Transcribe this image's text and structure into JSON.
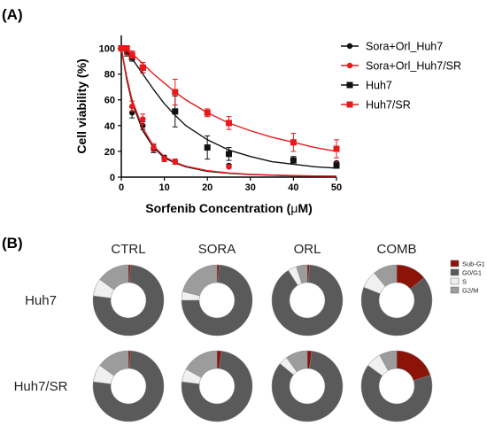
{
  "panel_labels": [
    "(A)",
    "(B)"
  ],
  "colors": {
    "black": "#111111",
    "red": "#e8191c",
    "sub_g1": "#8b1308",
    "g0_g1": "#5a5a5a",
    "s": "#f0f0f0",
    "g2_m": "#9c9c9c"
  },
  "chart_data": [
    {
      "type": "line",
      "xlabel_prefix": "Sorfenib Concentration (",
      "xlabel_mu": "μ",
      "xlabel_suffix": "M)",
      "ylabel": "Cell viability (%)",
      "xlim": [
        0,
        50
      ],
      "ylim": [
        0,
        110
      ],
      "xticks": [
        0,
        10,
        20,
        30,
        40,
        50
      ],
      "yticks": [
        0,
        20,
        40,
        60,
        80,
        100
      ],
      "legend_position": "right",
      "series": [
        {
          "name": "Sora+Orl_Huh7",
          "color": "#111111",
          "marker": "circle",
          "x": [
            0,
            1.25,
            2.5,
            5,
            7.5,
            10,
            12.5,
            25,
            50
          ],
          "y": [
            100,
            97,
            50,
            40,
            22,
            15,
            12,
            9,
            11
          ],
          "err": [
            2,
            3,
            4,
            3,
            3,
            2,
            2,
            1,
            1
          ],
          "fit": [
            0,
            1.25,
            2.5,
            5,
            7.5,
            10,
            12.5,
            15,
            20,
            25,
            30,
            35,
            40,
            45,
            50
          ],
          "fit_y": [
            100,
            76,
            58,
            36,
            23,
            15,
            11,
            8,
            4.5,
            3,
            2,
            1.5,
            1,
            0.8,
            0.6
          ]
        },
        {
          "name": "Sora+Orl_Huh7/SR",
          "color": "#e8191c",
          "marker": "circle",
          "x": [
            0,
            1.25,
            2.5,
            5,
            7.5,
            10,
            12.5,
            25,
            50
          ],
          "y": [
            100,
            98,
            55,
            45,
            23,
            14,
            12,
            8,
            10
          ],
          "err": [
            2,
            3,
            4,
            4,
            3,
            2,
            2,
            1,
            1
          ],
          "fit": [
            0,
            1.25,
            2.5,
            5,
            7.5,
            10,
            12.5,
            15,
            20,
            25,
            30,
            35,
            40,
            45,
            50
          ],
          "fit_y": [
            100,
            78,
            60,
            38,
            24,
            16,
            11.5,
            8.5,
            5,
            3.2,
            2.2,
            1.6,
            1.2,
            0.9,
            0.7
          ]
        },
        {
          "name": "Huh7",
          "color": "#111111",
          "marker": "square",
          "x": [
            0,
            1.25,
            2.5,
            5,
            12.5,
            20,
            25,
            40,
            50
          ],
          "y": [
            100,
            100,
            93,
            85,
            51,
            23,
            18,
            13,
            9
          ],
          "err": [
            2,
            2,
            3,
            4,
            12,
            9,
            5,
            3,
            2
          ],
          "fit": [
            0,
            2.5,
            5,
            7.5,
            10,
            12.5,
            15,
            20,
            25,
            30,
            35,
            40,
            45,
            50
          ],
          "fit_y": [
            102,
            92,
            80,
            68,
            57,
            48,
            40,
            29,
            21,
            16,
            12,
            10,
            8,
            7
          ]
        },
        {
          "name": "Huh7/SR",
          "color": "#e8191c",
          "marker": "square",
          "x": [
            0,
            1.25,
            2.5,
            5,
            12.5,
            20,
            25,
            40,
            50
          ],
          "y": [
            100,
            100,
            95,
            85,
            66,
            50,
            42,
            27,
            22
          ],
          "err": [
            2,
            2,
            3,
            4,
            10,
            3,
            5,
            7,
            7
          ],
          "fit": [
            0,
            2.5,
            5,
            7.5,
            10,
            12.5,
            15,
            20,
            25,
            30,
            35,
            40,
            45,
            50
          ],
          "fit_y": [
            102,
            96,
            88,
            80,
            73,
            66,
            60,
            50,
            42,
            36,
            31,
            27,
            23,
            20
          ]
        }
      ]
    },
    {
      "type": "pie",
      "donut": true,
      "columns": [
        "CTRL",
        "SORA",
        "ORL",
        "COMB"
      ],
      "rows": [
        "Huh7",
        "Huh7/SR"
      ],
      "legend_position": "right",
      "legend": [
        "Sub-G1",
        "G0/G1",
        "S",
        "G2/M"
      ],
      "values": {
        "Huh7": {
          "CTRL": [
            1,
            76,
            8,
            15
          ],
          "SORA": [
            1,
            74,
            4,
            21
          ],
          "ORL": [
            1,
            90,
            4,
            5
          ],
          "COMB": [
            14,
            67,
            8,
            11
          ]
        },
        "Huh7/SR": {
          "CTRL": [
            1,
            76,
            8,
            15
          ],
          "SORA": [
            2,
            75,
            6,
            17
          ],
          "ORL": [
            2,
            84,
            4,
            10
          ],
          "COMB": [
            20,
            65,
            7,
            8
          ]
        }
      }
    }
  ]
}
